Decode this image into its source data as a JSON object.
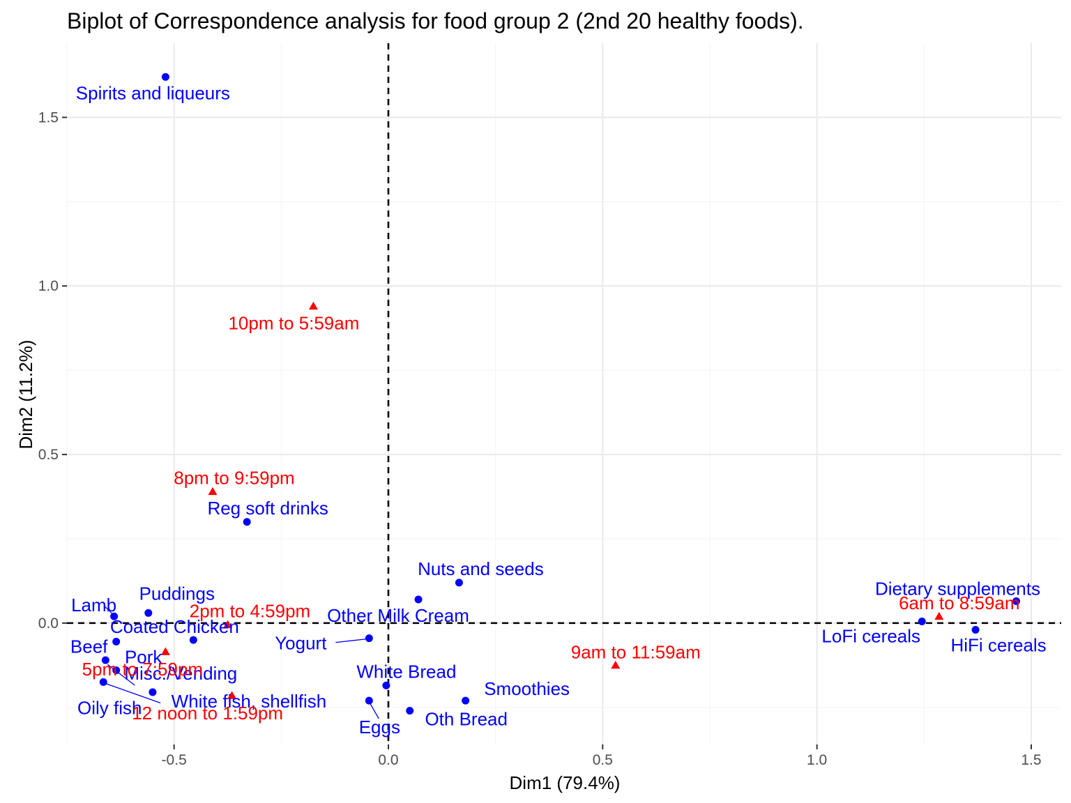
{
  "chart_data": {
    "type": "scatter",
    "title": "Biplot of Correspondence analysis for food group 2 (2nd 20 healthy foods).",
    "xlabel": "Dim1 (79.4%)",
    "ylabel": "Dim2 (11.2%)",
    "xlim": [
      -0.75,
      1.57
    ],
    "ylim": [
      -0.36,
      1.72
    ],
    "xticks": [
      -0.5,
      0.0,
      0.5,
      1.0,
      1.5
    ],
    "xtick_labels": [
      "-0.5",
      "0.0",
      "0.5",
      "1.0",
      "1.5"
    ],
    "yticks": [
      0.0,
      0.5,
      1.0,
      1.5
    ],
    "ytick_labels": [
      "0.0",
      "0.5",
      "1.0",
      "1.5"
    ],
    "grid": true,
    "reference_lines": {
      "x": 0,
      "y": 0,
      "style": "dashed"
    },
    "colors": {
      "rows": "#0000ff",
      "columns": "#ff0000",
      "grid_major": "#ebebeb",
      "grid_minor": "#f5f5f5"
    },
    "series": [
      {
        "marker": "circle",
        "color": "#0000ff",
        "points": [
          {
            "label": "Spirits and liqueurs",
            "x": -0.52,
            "y": 1.62
          },
          {
            "label": "Reg soft drinks",
            "x": -0.33,
            "y": 0.3
          },
          {
            "label": "Nuts and seeds",
            "x": 0.165,
            "y": 0.12
          },
          {
            "label": "Other Milk Cream",
            "x": 0.07,
            "y": 0.07
          },
          {
            "label": "Dietary supplements",
            "x": 1.465,
            "y": 0.065
          },
          {
            "label": "Lamb",
            "x": -0.64,
            "y": 0.02
          },
          {
            "label": "Puddings",
            "x": -0.56,
            "y": 0.03
          },
          {
            "label": "LoFi cereals",
            "x": 1.245,
            "y": 0.005
          },
          {
            "label": "HiFi cereals",
            "x": 1.37,
            "y": -0.02
          },
          {
            "label": "Coated Chicken",
            "x": -0.455,
            "y": -0.05
          },
          {
            "label": "Yogurt",
            "x": -0.045,
            "y": -0.045
          },
          {
            "label": "Beef",
            "x": -0.635,
            "y": -0.055
          },
          {
            "label": "Pork",
            "x": -0.635,
            "y": -0.14
          },
          {
            "label": "Oily fish",
            "x": -0.665,
            "y": -0.175
          },
          {
            "label": "Misc./Vending",
            "x": -0.66,
            "y": -0.11
          },
          {
            "label": "White fish, shellfish",
            "x": -0.55,
            "y": -0.205
          },
          {
            "label": "White Bread",
            "x": -0.005,
            "y": -0.185
          },
          {
            "label": "Smoothies",
            "x": 0.18,
            "y": -0.23
          },
          {
            "label": "Eggs",
            "x": -0.045,
            "y": -0.23
          },
          {
            "label": "Oth Bread",
            "x": 0.05,
            "y": -0.26
          }
        ]
      },
      {
        "marker": "triangle",
        "color": "#ff0000",
        "points": [
          {
            "label": "10pm to 5:59am",
            "x": -0.175,
            "y": 0.94
          },
          {
            "label": "8pm to 9:59pm",
            "x": -0.41,
            "y": 0.39
          },
          {
            "label": "2pm to 4:59pm",
            "x": -0.375,
            "y": -0.005
          },
          {
            "label": "6am to 8:59am",
            "x": 1.285,
            "y": 0.02
          },
          {
            "label": "5pm to 7:59pm",
            "x": -0.52,
            "y": -0.085
          },
          {
            "label": "9am to 11:59am",
            "x": 0.53,
            "y": -0.125
          },
          {
            "label": "12 noon to 1:59pm",
            "x": -0.365,
            "y": -0.215
          }
        ]
      }
    ]
  }
}
